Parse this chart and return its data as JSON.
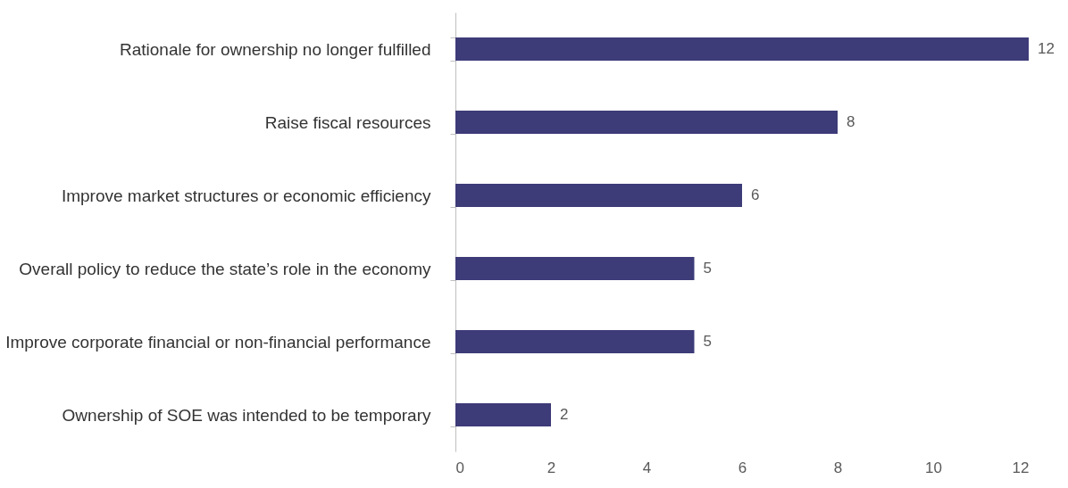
{
  "chart_data": {
    "type": "bar",
    "orientation": "horizontal",
    "categories": [
      "Rationale for ownership no longer fulfilled",
      "Raise fiscal resources",
      "Improve market structures or economic efficiency",
      "Overall policy to reduce the state’s role in the economy",
      "Improve corporate financial or non-financial performance",
      "Ownership of SOE was intended to be temporary"
    ],
    "values": [
      12,
      8,
      6,
      5,
      5,
      2
    ],
    "color": "#3d3b78",
    "xlim": [
      0,
      12
    ],
    "xticks": [
      0,
      2,
      4,
      6,
      8,
      10,
      12
    ],
    "data_labels": true,
    "grid": false
  }
}
